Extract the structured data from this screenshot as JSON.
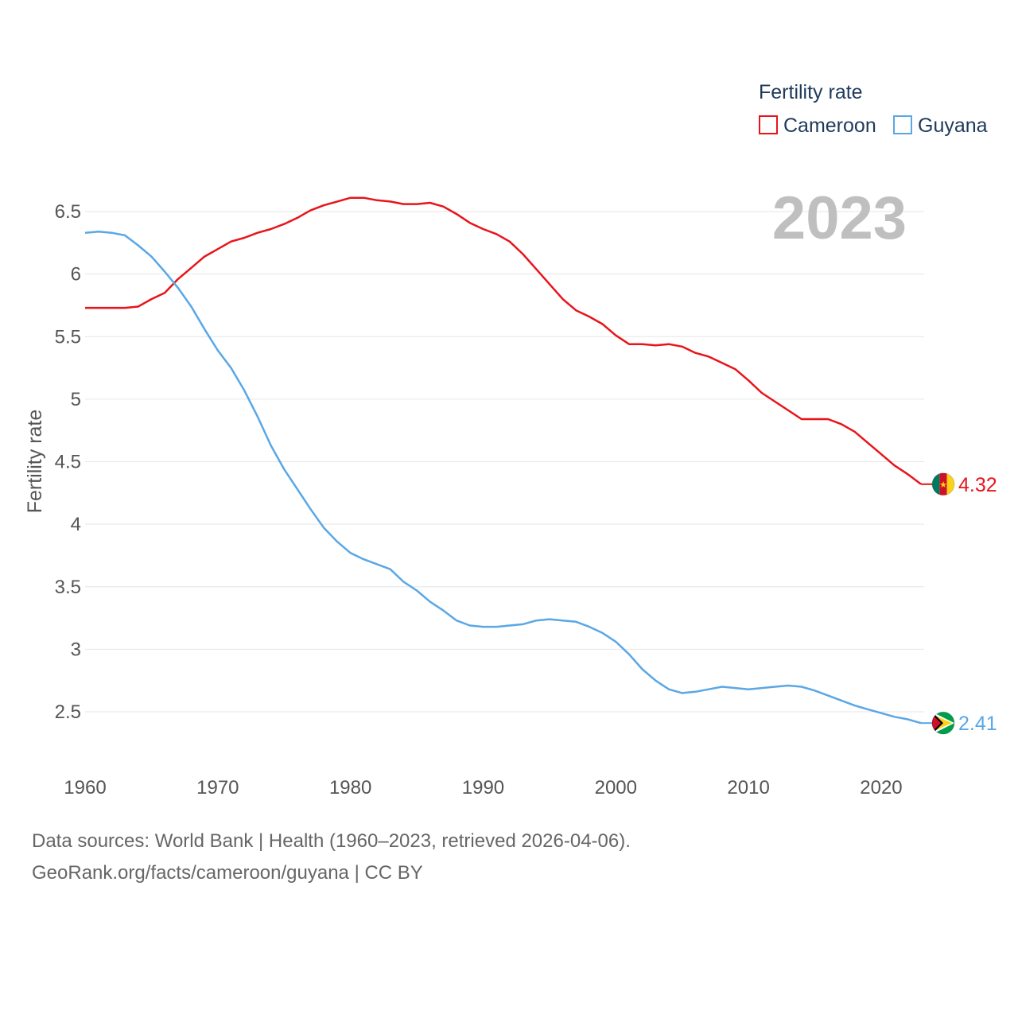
{
  "chart_data": {
    "type": "line",
    "title": "2023",
    "ylabel": "Fertility rate",
    "xlabel": "",
    "x_range": [
      1960,
      2023
    ],
    "ylim": [
      2.1,
      6.8
    ],
    "x_ticks": [
      "1960",
      "1970",
      "1980",
      "1990",
      "2000",
      "2010",
      "2020"
    ],
    "y_ticks": [
      "2.5",
      "3",
      "3.5",
      "4",
      "4.5",
      "5",
      "5.5",
      "6",
      "6.5"
    ],
    "legend": {
      "title": "Fertility rate",
      "position": "top-right"
    },
    "series": [
      {
        "name": "Cameroon",
        "color": "#e8141b",
        "end_label": "4.32",
        "flag": "cameroon-flag",
        "values": [
          5.73,
          5.73,
          5.73,
          5.73,
          5.74,
          5.8,
          5.85,
          5.96,
          6.05,
          6.14,
          6.2,
          6.26,
          6.29,
          6.33,
          6.36,
          6.4,
          6.45,
          6.51,
          6.55,
          6.58,
          6.61,
          6.61,
          6.59,
          6.58,
          6.56,
          6.56,
          6.57,
          6.54,
          6.48,
          6.41,
          6.36,
          6.32,
          6.26,
          6.16,
          6.04,
          5.92,
          5.8,
          5.71,
          5.66,
          5.6,
          5.51,
          5.44,
          5.44,
          5.43,
          5.44,
          5.42,
          5.37,
          5.34,
          5.29,
          5.24,
          5.15,
          5.05,
          4.98,
          4.91,
          4.84,
          4.84,
          4.84,
          4.8,
          4.74,
          4.65,
          4.56,
          4.47,
          4.4,
          4.32
        ]
      },
      {
        "name": "Guyana",
        "color": "#5aa7e6",
        "end_label": "2.41",
        "flag": "guyana-flag",
        "values": [
          6.33,
          6.34,
          6.33,
          6.31,
          6.23,
          6.14,
          6.02,
          5.89,
          5.74,
          5.56,
          5.39,
          5.25,
          5.07,
          4.86,
          4.63,
          4.44,
          4.28,
          4.12,
          3.97,
          3.86,
          3.77,
          3.72,
          3.68,
          3.64,
          3.54,
          3.47,
          3.38,
          3.31,
          3.23,
          3.19,
          3.18,
          3.18,
          3.19,
          3.2,
          3.23,
          3.24,
          3.23,
          3.22,
          3.18,
          3.13,
          3.06,
          2.96,
          2.84,
          2.75,
          2.68,
          2.65,
          2.66,
          2.68,
          2.7,
          2.69,
          2.68,
          2.69,
          2.7,
          2.71,
          2.7,
          2.67,
          2.63,
          2.59,
          2.55,
          2.52,
          2.49,
          2.46,
          2.44,
          2.41
        ]
      }
    ]
  },
  "footer": {
    "line1": "Data sources: World Bank | Health (1960–2023, retrieved 2026-04-06).",
    "line2": "GeoRank.org/facts/cameroon/guyana | CC BY"
  }
}
